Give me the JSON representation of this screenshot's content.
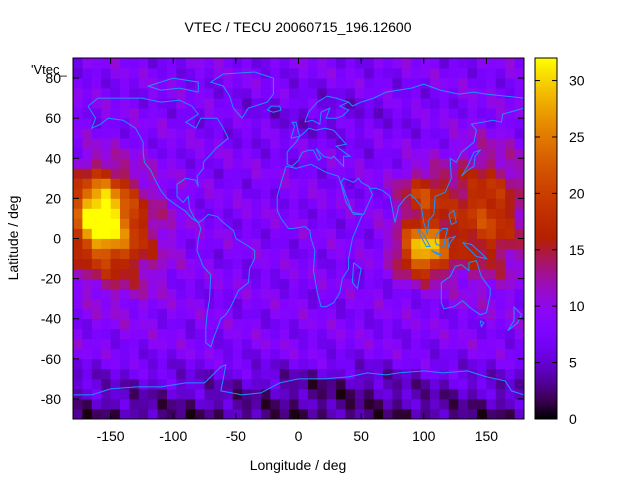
{
  "chart_data": {
    "type": "heatmap",
    "title": "VTEC / TECU 20060715_196.12600",
    "xlabel": "Longitude / deg",
    "ylabel": "Latitude / deg",
    "key_label": "'Vtec_",
    "xlim": [
      -180,
      180
    ],
    "ylim": [
      -90,
      90
    ],
    "x_ticks": [
      -150,
      -100,
      -50,
      0,
      50,
      100,
      150
    ],
    "y_ticks": [
      -80,
      -60,
      -40,
      -20,
      0,
      20,
      40,
      60,
      80
    ],
    "colorbar": {
      "min": 0,
      "max": 32,
      "ticks": [
        0,
        5,
        10,
        15,
        20,
        25,
        30
      ]
    },
    "colormap": "gnuplot-pm3d",
    "coastline_color": "#1e90ff",
    "grid": false,
    "maxima": [
      {
        "lon": -160,
        "lat": 12,
        "vtec": 31
      },
      {
        "lon": 100,
        "lat": -5,
        "vtec": 31
      }
    ]
  }
}
